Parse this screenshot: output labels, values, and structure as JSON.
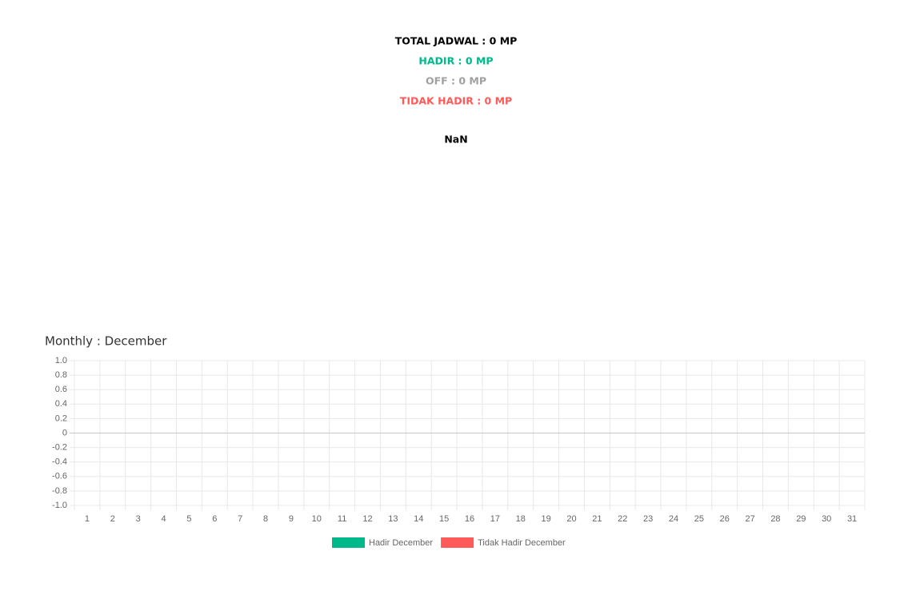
{
  "summary": {
    "total": "TOTAL JADWAL : 0 MP",
    "hadir": "HADIR : 0 MP",
    "off": "OFF : 0 MP",
    "tidak_hadir": "TIDAK HADIR : 0 MP",
    "result": "NaN"
  },
  "chart_data": {
    "type": "bar",
    "title": "Monthly : December",
    "categories": [
      "1",
      "2",
      "3",
      "4",
      "5",
      "6",
      "7",
      "8",
      "9",
      "10",
      "11",
      "12",
      "13",
      "14",
      "15",
      "16",
      "17",
      "18",
      "19",
      "20",
      "21",
      "22",
      "23",
      "24",
      "25",
      "26",
      "27",
      "28",
      "29",
      "30",
      "31"
    ],
    "series": [
      {
        "name": "Hadir December",
        "color": "#00b98a",
        "values": [
          0,
          0,
          0,
          0,
          0,
          0,
          0,
          0,
          0,
          0,
          0,
          0,
          0,
          0,
          0,
          0,
          0,
          0,
          0,
          0,
          0,
          0,
          0,
          0,
          0,
          0,
          0,
          0,
          0,
          0,
          0
        ]
      },
      {
        "name": "Tidak Hadir December",
        "color": "#ff5a5a",
        "values": [
          0,
          0,
          0,
          0,
          0,
          0,
          0,
          0,
          0,
          0,
          0,
          0,
          0,
          0,
          0,
          0,
          0,
          0,
          0,
          0,
          0,
          0,
          0,
          0,
          0,
          0,
          0,
          0,
          0,
          0,
          0
        ]
      }
    ],
    "ylim": [
      -1,
      1
    ],
    "yticks": [
      {
        "value": -1,
        "label": "-1.0"
      },
      -0.8,
      -0.6,
      -0.4,
      -0.2,
      0,
      0.2,
      0.4,
      0.6,
      0.8,
      {
        "value": 1,
        "label": "1.0"
      }
    ],
    "grid": true,
    "legend": "bottom"
  }
}
